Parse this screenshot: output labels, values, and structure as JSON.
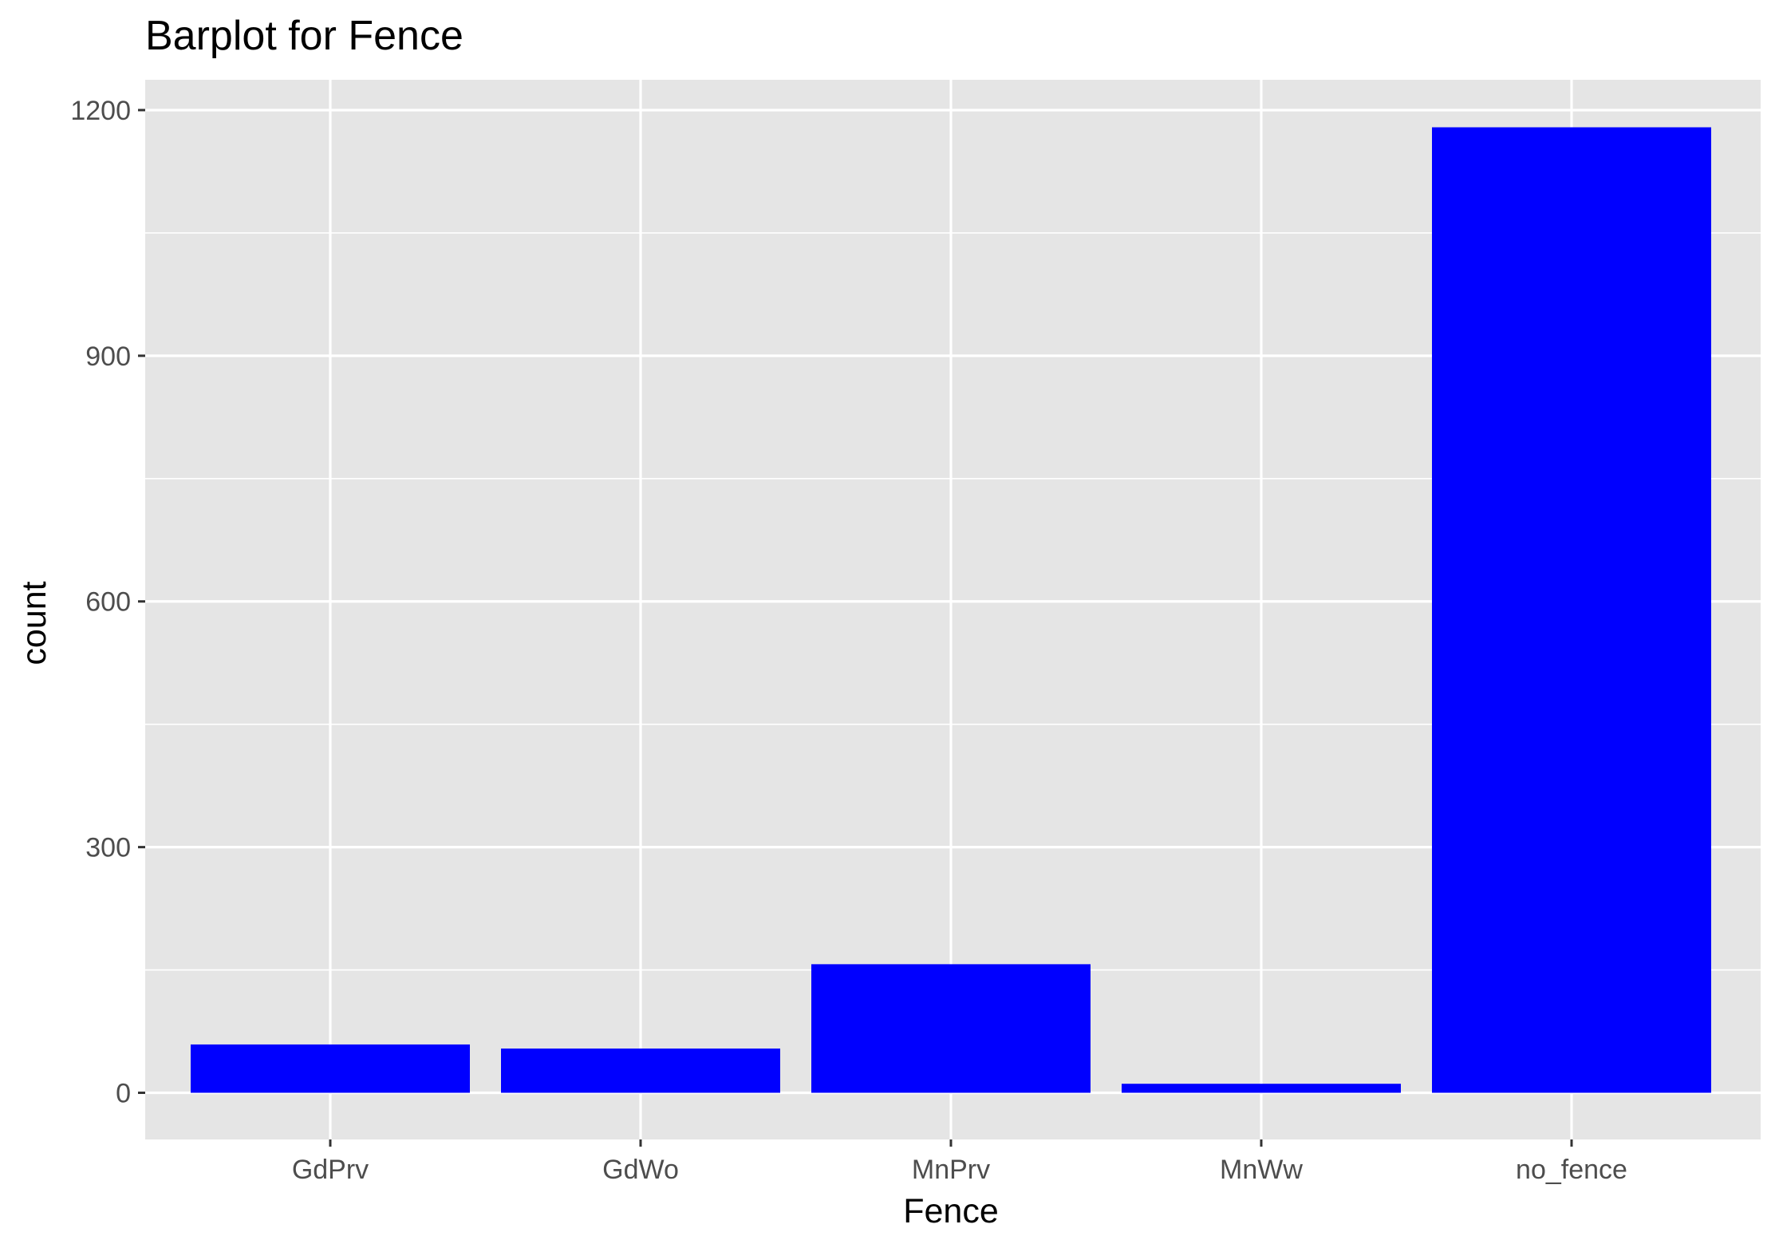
{
  "chart_data": {
    "type": "bar",
    "title": "Barplot for Fence",
    "xlabel": "Fence",
    "ylabel": "count",
    "categories": [
      "GdPrv",
      "GdWo",
      "MnPrv",
      "MnWw",
      "no_fence"
    ],
    "values": [
      59,
      54,
      157,
      11,
      1179
    ],
    "ylim": [
      -57,
      1237
    ],
    "yticks": [
      0,
      300,
      600,
      900,
      1200
    ],
    "grid": true,
    "legend": "none",
    "colors": {
      "bar": "#0000ff",
      "panel": "#e5e5e5",
      "grid": "#ffffff",
      "tick_text": "#4d4d4d",
      "text": "#000000"
    }
  }
}
